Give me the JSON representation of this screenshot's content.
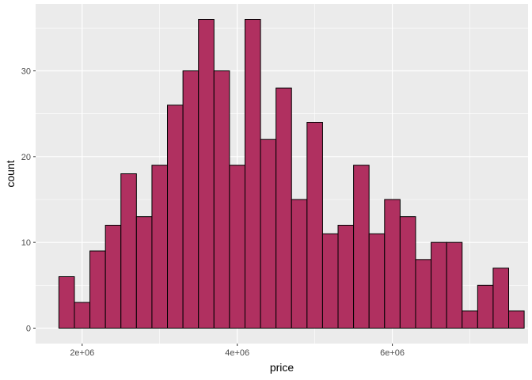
{
  "chart_data": {
    "type": "bar",
    "subtype": "histogram",
    "title": "",
    "xlabel": "price",
    "ylabel": "count",
    "bin_width": 200000,
    "bins_start": 1700000,
    "values": [
      6,
      3,
      9,
      12,
      18,
      13,
      19,
      26,
      30,
      36,
      30,
      19,
      36,
      22,
      28,
      15,
      24,
      11,
      12,
      19,
      11,
      15,
      13,
      8,
      10,
      10,
      2,
      5,
      7,
      2
    ],
    "xlim": [
      1400000,
      7750000
    ],
    "ylim": [
      -1.8,
      37.8
    ],
    "x_major_ticks": [
      2000000,
      4000000,
      6000000
    ],
    "x_tick_labels": [
      "2e+06",
      "4e+06",
      "6e+06"
    ],
    "x_minor_ticks": [
      3000000,
      5000000,
      7000000
    ],
    "y_major_ticks": [
      0,
      10,
      20,
      30
    ],
    "y_tick_labels": [
      "0",
      "10",
      "20",
      "30"
    ],
    "y_minor_ticks": [
      5,
      15,
      25,
      35
    ],
    "grid": true,
    "legend": "none",
    "colors": {
      "bar_fill": "#b03060",
      "bar_stroke": "#000000",
      "panel_bg": "#ebebeb",
      "grid": "#ffffff"
    }
  }
}
